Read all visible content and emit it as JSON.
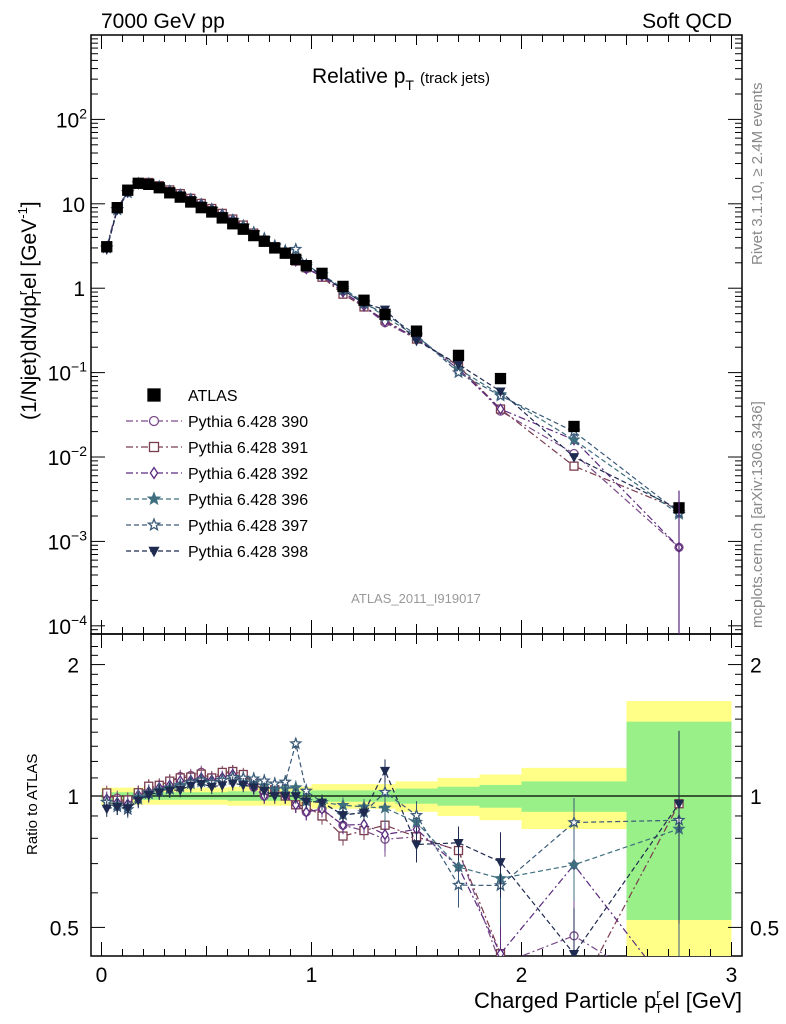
{
  "header": {
    "left_label": "7000 GeV pp",
    "right_label": "Soft QCD",
    "side_label_top": "Rivet 3.1.10, ≥ 2.4M events",
    "side_label_bottom": "mcplots.cern.ch [arXiv:1306.3436]",
    "analysis_id": "ATLAS_2011_I919017"
  },
  "chart_data": [
    {
      "type": "scatter",
      "panel": "main",
      "title_main": "Relative p",
      "title_sub": "T",
      "title_suffix": "(track jets)",
      "ylabel": "(1/Njet)dN/dp^r_T el [GeV^-1]",
      "ylabel_parts": {
        "pre": "(1/Njet)dN/dp",
        "sup": "r",
        "sub": "T",
        "mid": "el [GeV",
        "exp": "-1",
        "post": "]"
      },
      "yscale": "log",
      "ylim": [
        8e-05,
        1000
      ],
      "xlim": [
        -0.05,
        3.05
      ],
      "ytick_labels": [
        {
          "v": 0.0001,
          "base": "10",
          "exp": "−4"
        },
        {
          "v": 0.001,
          "base": "10",
          "exp": "−3"
        },
        {
          "v": 0.01,
          "base": "10",
          "exp": "−2"
        },
        {
          "v": 0.1,
          "base": "10",
          "exp": "−1"
        },
        {
          "v": 1,
          "base": "1",
          "exp": ""
        },
        {
          "v": 10,
          "base": "10",
          "exp": ""
        },
        {
          "v": 100,
          "base": "10",
          "exp": "2"
        }
      ],
      "legend_position": "lower-left",
      "x": [
        0.025,
        0.075,
        0.125,
        0.175,
        0.225,
        0.275,
        0.325,
        0.375,
        0.425,
        0.475,
        0.525,
        0.575,
        0.625,
        0.675,
        0.725,
        0.775,
        0.825,
        0.875,
        0.925,
        0.975,
        1.05,
        1.15,
        1.25,
        1.35,
        1.5,
        1.7,
        1.9,
        2.25,
        2.75
      ],
      "series": [
        {
          "name": "ATLAS",
          "color": "#000000",
          "marker": "square-filled",
          "line": "none",
          "values": [
            3.1,
            9.0,
            14.5,
            17.5,
            17.0,
            15.5,
            13.5,
            12.0,
            10.5,
            9.0,
            8.0,
            6.8,
            5.8,
            5.0,
            4.2,
            3.6,
            3.0,
            2.6,
            2.2,
            1.85,
            1.5,
            1.05,
            0.72,
            0.49,
            0.31,
            0.16,
            0.085,
            0.023,
            0.0025
          ]
        },
        {
          "name": "Pythia 6.428 390",
          "color": "#7a4b8a",
          "marker": "circle-open",
          "line": "dashdot",
          "values": [
            3.1,
            8.9,
            13.8,
            17.8,
            17.8,
            16.3,
            14.6,
            13.3,
            11.7,
            10.2,
            8.8,
            7.6,
            6.6,
            5.4,
            4.4,
            3.6,
            3.1,
            2.6,
            2.1,
            1.7,
            1.4,
            0.9,
            0.6,
            0.39,
            0.25,
            0.12,
            0.035,
            0.011,
            0.00085
          ]
        },
        {
          "name": "Pythia 6.428 391",
          "color": "#7a3d4d",
          "marker": "square-open",
          "line": "dashdot",
          "values": [
            3.15,
            8.8,
            14.2,
            17.8,
            17.9,
            16.4,
            14.6,
            13.2,
            11.6,
            10.1,
            8.8,
            7.7,
            6.6,
            5.6,
            4.5,
            3.7,
            3.1,
            2.6,
            2.1,
            1.75,
            1.35,
            0.85,
            0.6,
            0.42,
            0.25,
            0.12,
            0.037,
            0.0078,
            0.0024
          ]
        },
        {
          "name": "Pythia 6.428 392",
          "color": "#5b2a7e",
          "marker": "diamond-open",
          "line": "dashdot",
          "values": [
            3.05,
            8.7,
            13.9,
            17.6,
            17.4,
            16.2,
            14.3,
            13.0,
            11.4,
            9.9,
            8.7,
            7.5,
            6.5,
            5.4,
            4.4,
            3.6,
            3.1,
            2.6,
            2.1,
            1.7,
            1.4,
            0.9,
            0.62,
            0.4,
            0.26,
            0.11,
            0.037,
            0.016,
            0.00085
          ]
        },
        {
          "name": "Pythia 6.428 396",
          "color": "#3f6f7f",
          "marker": "star-filled",
          "line": "dashed",
          "values": [
            3.0,
            8.6,
            13.7,
            17.4,
            17.3,
            16.0,
            14.1,
            12.7,
            11.2,
            9.7,
            8.6,
            7.4,
            6.4,
            5.4,
            4.5,
            3.8,
            3.1,
            2.7,
            2.3,
            1.8,
            1.45,
            1.0,
            0.68,
            0.46,
            0.27,
            0.11,
            0.055,
            0.016,
            0.0021
          ]
        },
        {
          "name": "Pythia 6.428 397",
          "color": "#3a5a78",
          "marker": "star-open",
          "line": "dashed",
          "values": [
            3.0,
            8.5,
            13.5,
            17.2,
            17.2,
            15.9,
            14.0,
            12.6,
            11.3,
            9.8,
            8.6,
            7.4,
            6.4,
            5.5,
            4.6,
            3.9,
            3.2,
            2.8,
            2.9,
            1.9,
            1.45,
            0.95,
            0.66,
            0.5,
            0.28,
            0.1,
            0.053,
            0.02,
            0.0022
          ]
        },
        {
          "name": "Pythia 6.428 398",
          "color": "#1e2a4f",
          "marker": "triangle-down-filled",
          "line": "dashed",
          "values": [
            2.9,
            8.5,
            13.6,
            17.1,
            17.1,
            15.8,
            13.9,
            12.4,
            11.1,
            9.6,
            8.4,
            7.2,
            6.2,
            5.3,
            4.4,
            3.7,
            3.0,
            2.6,
            2.2,
            1.8,
            1.45,
            0.95,
            0.66,
            0.56,
            0.24,
            0.125,
            0.06,
            0.01,
            0.0024
          ]
        }
      ]
    },
    {
      "type": "scatter",
      "panel": "ratio",
      "ylabel": "Ratio to ATLAS",
      "xlabel_parts": {
        "pre": "Charged Particle p",
        "sup": "r",
        "sub": "T",
        "post": "el [GeV]"
      },
      "yscale": "log",
      "ylim": [
        0.43,
        2.35
      ],
      "xlim": [
        -0.05,
        3.05
      ],
      "xticks": [
        0,
        1,
        2,
        3
      ],
      "xtick_labels": [
        "0",
        "1",
        "2",
        "3"
      ],
      "yticks": [
        0.5,
        1,
        2
      ],
      "ytick_labels": [
        "0.5",
        "1",
        "2"
      ],
      "bands": [
        {
          "x0": 0.0,
          "x1": 0.6,
          "y_inner": 0.02,
          "y_outer": 0.045
        },
        {
          "x0": 0.6,
          "x1": 1.0,
          "y_inner": 0.025,
          "y_outer": 0.05
        },
        {
          "x0": 1.0,
          "x1": 1.4,
          "y_inner": 0.03,
          "y_outer": 0.065
        },
        {
          "x0": 1.4,
          "x1": 1.6,
          "y_inner": 0.04,
          "y_outer": 0.08
        },
        {
          "x0": 1.6,
          "x1": 1.8,
          "y_inner": 0.05,
          "y_outer": 0.1
        },
        {
          "x0": 1.8,
          "x1": 2.0,
          "y_inner": 0.06,
          "y_outer": 0.12
        },
        {
          "x0": 2.0,
          "x1": 2.5,
          "y_inner": 0.08,
          "y_outer": 0.16
        },
        {
          "x0": 2.5,
          "x1": 3.0,
          "y_inner": 0.48,
          "y_outer": 0.65
        }
      ]
    }
  ]
}
